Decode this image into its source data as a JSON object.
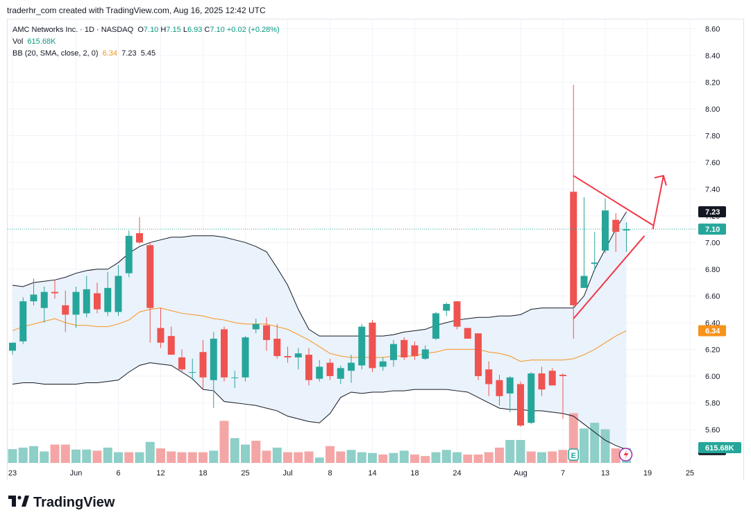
{
  "header": {
    "caption": "traderhr_com created with TradingView.com, Aug 16, 2025 12:42 UTC"
  },
  "legend": {
    "symbol": "AMC Networks Inc. · 1D · NASDAQ",
    "o_label": "O",
    "o_val": "7.10",
    "h_label": "H",
    "h_val": "7.15",
    "l_label": "L",
    "l_val": "6.93",
    "c_label": "C",
    "c_val": "7.10",
    "change": "+0.02 (+0.28%)",
    "vol_label": "Vol",
    "vol_val": "615.68K",
    "bb_label": "BB (20, SMA, close, 2, 0)",
    "bb_basis": "6.34",
    "bb_upper": "7.23",
    "bb_lower": "5.45"
  },
  "footer": {
    "brand": "TradingView"
  },
  "colors": {
    "up": "#26a69a",
    "down": "#ef5350",
    "up_vol": "#8ecfc8",
    "down_vol": "#f4a6a6",
    "basis": "#f7931a",
    "band": "#131722",
    "band_fill": "#eaf2fb",
    "drawing": "#f23645",
    "grid": "#f0f3fa"
  },
  "chart_data": {
    "type": "candlestick",
    "y_axis": {
      "ticks": [
        "8.60",
        "8.40",
        "8.20",
        "8.00",
        "7.80",
        "7.60",
        "7.40",
        "7.20",
        "7.00",
        "6.80",
        "6.60",
        "6.40",
        "6.20",
        "6.00",
        "5.80",
        "5.60"
      ],
      "ylim": [
        5.35,
        8.67
      ]
    },
    "x_axis": {
      "ticks": [
        {
          "label": "23",
          "i": 0
        },
        {
          "label": "Jun",
          "i": 6
        },
        {
          "label": "6",
          "i": 10
        },
        {
          "label": "12",
          "i": 14
        },
        {
          "label": "18",
          "i": 18
        },
        {
          "label": "25",
          "i": 22
        },
        {
          "label": "Jul",
          "i": 26
        },
        {
          "label": "8",
          "i": 30
        },
        {
          "label": "14",
          "i": 34
        },
        {
          "label": "18",
          "i": 38
        },
        {
          "label": "24",
          "i": 42
        },
        {
          "label": "Aug",
          "i": 48
        },
        {
          "label": "7",
          "i": 52
        },
        {
          "label": "13",
          "i": 56
        },
        {
          "label": "19",
          "i": 60
        },
        {
          "label": "25",
          "i": 64
        }
      ]
    },
    "price_labels": [
      {
        "value": 7.23,
        "text": "7.23",
        "bg": "#131722"
      },
      {
        "value": 7.1,
        "text": "7.10",
        "bg": "#26a69a"
      },
      {
        "value": 6.34,
        "text": "6.34",
        "bg": "#f7931a"
      },
      {
        "value": 5.45,
        "text": "5.45",
        "bg": "#131722"
      }
    ],
    "last_close": 7.1,
    "volume_label": "615.68K",
    "candles": [
      {
        "o": 6.19,
        "h": 6.25,
        "l": 6.16,
        "c": 6.25
      },
      {
        "o": 6.26,
        "h": 6.59,
        "l": 6.24,
        "c": 6.56
      },
      {
        "o": 6.56,
        "h": 6.73,
        "l": 6.53,
        "c": 6.61
      },
      {
        "o": 6.51,
        "h": 6.67,
        "l": 6.4,
        "c": 6.63
      },
      {
        "o": 6.63,
        "h": 6.72,
        "l": 6.58,
        "c": 6.62
      },
      {
        "o": 6.53,
        "h": 6.64,
        "l": 6.33,
        "c": 6.46
      },
      {
        "o": 6.46,
        "h": 6.67,
        "l": 6.36,
        "c": 6.63
      },
      {
        "o": 6.47,
        "h": 6.75,
        "l": 6.44,
        "c": 6.65
      },
      {
        "o": 6.62,
        "h": 6.7,
        "l": 6.47,
        "c": 6.5
      },
      {
        "o": 6.48,
        "h": 6.78,
        "l": 6.45,
        "c": 6.66
      },
      {
        "o": 6.48,
        "h": 6.83,
        "l": 6.45,
        "c": 6.75
      },
      {
        "o": 6.77,
        "h": 7.09,
        "l": 6.74,
        "c": 7.05
      },
      {
        "o": 7.07,
        "h": 7.19,
        "l": 6.99,
        "c": 7.0
      },
      {
        "o": 6.98,
        "h": 7.0,
        "l": 6.25,
        "c": 6.51
      },
      {
        "o": 6.36,
        "h": 6.51,
        "l": 6.21,
        "c": 6.25
      },
      {
        "o": 6.3,
        "h": 6.37,
        "l": 6.16,
        "c": 6.16
      },
      {
        "o": 6.14,
        "h": 6.2,
        "l": 6.03,
        "c": 6.05
      },
      {
        "o": 6.03,
        "h": 6.13,
        "l": 5.97,
        "c": 6.03
      },
      {
        "o": 6.18,
        "h": 6.27,
        "l": 5.9,
        "c": 5.99
      },
      {
        "o": 5.97,
        "h": 6.33,
        "l": 5.76,
        "c": 6.28
      },
      {
        "o": 6.35,
        "h": 6.37,
        "l": 5.96,
        "c": 5.99
      },
      {
        "o": 5.99,
        "h": 6.04,
        "l": 5.91,
        "c": 5.99
      },
      {
        "o": 5.99,
        "h": 6.3,
        "l": 5.96,
        "c": 6.29
      },
      {
        "o": 6.35,
        "h": 6.43,
        "l": 6.32,
        "c": 6.39
      },
      {
        "o": 6.38,
        "h": 6.44,
        "l": 6.19,
        "c": 6.27
      },
      {
        "o": 6.28,
        "h": 6.39,
        "l": 6.13,
        "c": 6.15
      },
      {
        "o": 6.15,
        "h": 6.22,
        "l": 6.1,
        "c": 6.14
      },
      {
        "o": 6.14,
        "h": 6.21,
        "l": 6.05,
        "c": 6.17
      },
      {
        "o": 6.16,
        "h": 6.21,
        "l": 5.93,
        "c": 5.97
      },
      {
        "o": 5.98,
        "h": 6.12,
        "l": 5.96,
        "c": 6.07
      },
      {
        "o": 6.1,
        "h": 6.13,
        "l": 5.97,
        "c": 6.0
      },
      {
        "o": 5.98,
        "h": 6.08,
        "l": 5.94,
        "c": 6.06
      },
      {
        "o": 6.04,
        "h": 6.16,
        "l": 5.95,
        "c": 6.1
      },
      {
        "o": 6.08,
        "h": 6.39,
        "l": 6.05,
        "c": 6.37
      },
      {
        "o": 6.4,
        "h": 6.42,
        "l": 6.03,
        "c": 6.06
      },
      {
        "o": 6.07,
        "h": 6.14,
        "l": 6.04,
        "c": 6.11
      },
      {
        "o": 6.12,
        "h": 6.27,
        "l": 6.07,
        "c": 6.24
      },
      {
        "o": 6.27,
        "h": 6.29,
        "l": 6.12,
        "c": 6.14
      },
      {
        "o": 6.23,
        "h": 6.26,
        "l": 6.12,
        "c": 6.15
      },
      {
        "o": 6.13,
        "h": 6.23,
        "l": 6.12,
        "c": 6.2
      },
      {
        "o": 6.28,
        "h": 6.48,
        "l": 6.27,
        "c": 6.47
      },
      {
        "o": 6.49,
        "h": 6.55,
        "l": 6.45,
        "c": 6.54
      },
      {
        "o": 6.56,
        "h": 6.56,
        "l": 6.35,
        "c": 6.37
      },
      {
        "o": 6.36,
        "h": 6.36,
        "l": 6.28,
        "c": 6.28
      },
      {
        "o": 6.32,
        "h": 6.32,
        "l": 5.97,
        "c": 6.0
      },
      {
        "o": 6.05,
        "h": 6.11,
        "l": 5.85,
        "c": 5.94
      },
      {
        "o": 5.97,
        "h": 6.01,
        "l": 5.78,
        "c": 5.85
      },
      {
        "o": 5.87,
        "h": 6.0,
        "l": 5.73,
        "c": 5.99
      },
      {
        "o": 5.94,
        "h": 5.96,
        "l": 5.62,
        "c": 5.63
      },
      {
        "o": 5.65,
        "h": 6.03,
        "l": 5.64,
        "c": 6.02
      },
      {
        "o": 6.02,
        "h": 6.07,
        "l": 5.85,
        "c": 5.9
      },
      {
        "o": 6.04,
        "h": 6.06,
        "l": 5.95,
        "c": 5.93
      },
      {
        "o": 6.01,
        "h": 6.02,
        "l": 5.68,
        "c": 6.0
      },
      {
        "o": 7.38,
        "h": 8.18,
        "l": 6.28,
        "c": 6.53
      },
      {
        "o": 6.66,
        "h": 7.34,
        "l": 6.66,
        "c": 6.75
      },
      {
        "o": 6.84,
        "h": 7.08,
        "l": 6.79,
        "c": 6.85
      },
      {
        "o": 6.94,
        "h": 7.33,
        "l": 6.92,
        "c": 7.24
      },
      {
        "o": 7.17,
        "h": 7.22,
        "l": 6.93,
        "c": 7.08
      },
      {
        "o": 7.09,
        "h": 7.15,
        "l": 6.93,
        "c": 7.1
      }
    ],
    "volume": [
      {
        "v": 0.36,
        "up": true
      },
      {
        "v": 0.4,
        "up": true
      },
      {
        "v": 0.44,
        "up": true
      },
      {
        "v": 0.3,
        "up": true
      },
      {
        "v": 0.48,
        "up": false
      },
      {
        "v": 0.48,
        "up": false
      },
      {
        "v": 0.35,
        "up": true
      },
      {
        "v": 0.35,
        "up": true
      },
      {
        "v": 0.32,
        "up": false
      },
      {
        "v": 0.4,
        "up": true
      },
      {
        "v": 0.28,
        "up": true
      },
      {
        "v": 0.28,
        "up": false
      },
      {
        "v": 0.28,
        "up": true
      },
      {
        "v": 0.55,
        "up": true
      },
      {
        "v": 0.38,
        "up": false
      },
      {
        "v": 0.3,
        "up": false
      },
      {
        "v": 0.28,
        "up": false
      },
      {
        "v": 0.28,
        "up": false
      },
      {
        "v": 0.28,
        "up": false
      },
      {
        "v": 0.32,
        "up": true
      },
      {
        "v": 1.1,
        "up": false
      },
      {
        "v": 0.65,
        "up": true
      },
      {
        "v": 0.48,
        "up": true
      },
      {
        "v": 0.58,
        "up": false
      },
      {
        "v": 0.32,
        "up": false
      },
      {
        "v": 0.4,
        "up": true
      },
      {
        "v": 0.28,
        "up": false
      },
      {
        "v": 0.28,
        "up": false
      },
      {
        "v": 0.3,
        "up": false
      },
      {
        "v": 0.14,
        "up": true
      },
      {
        "v": 0.44,
        "up": false
      },
      {
        "v": 0.3,
        "up": false
      },
      {
        "v": 0.34,
        "up": true
      },
      {
        "v": 0.28,
        "up": true
      },
      {
        "v": 0.26,
        "up": true
      },
      {
        "v": 0.22,
        "up": false
      },
      {
        "v": 0.26,
        "up": true
      },
      {
        "v": 0.32,
        "up": true
      },
      {
        "v": 0.22,
        "up": false
      },
      {
        "v": 0.18,
        "up": false
      },
      {
        "v": 0.28,
        "up": true
      },
      {
        "v": 0.34,
        "up": true
      },
      {
        "v": 0.28,
        "up": true
      },
      {
        "v": 0.22,
        "up": false
      },
      {
        "v": 0.22,
        "up": false
      },
      {
        "v": 0.28,
        "up": false
      },
      {
        "v": 0.4,
        "up": false
      },
      {
        "v": 0.6,
        "up": true
      },
      {
        "v": 0.6,
        "up": true
      },
      {
        "v": 0.3,
        "up": false
      },
      {
        "v": 0.28,
        "up": true
      },
      {
        "v": 0.3,
        "up": false
      },
      {
        "v": 0.34,
        "up": false
      },
      {
        "v": 1.3,
        "up": false
      },
      {
        "v": 0.9,
        "up": true
      },
      {
        "v": 1.05,
        "up": true
      },
      {
        "v": 0.88,
        "up": true
      },
      {
        "v": 0.38,
        "up": false
      },
      {
        "v": 0.39,
        "up": true
      }
    ],
    "bb_upper": [
      6.68,
      6.67,
      6.7,
      6.71,
      6.72,
      6.74,
      6.77,
      6.79,
      6.8,
      6.8,
      6.85,
      6.92,
      6.97,
      7.0,
      7.02,
      7.04,
      7.04,
      7.05,
      7.05,
      7.05,
      7.04,
      7.02,
      7.0,
      6.97,
      6.93,
      6.81,
      6.68,
      6.5,
      6.35,
      6.3,
      6.3,
      6.3,
      6.3,
      6.3,
      6.3,
      6.3,
      6.31,
      6.33,
      6.34,
      6.35,
      6.38,
      6.4,
      6.42,
      6.43,
      6.44,
      6.44,
      6.45,
      6.45,
      6.46,
      6.5,
      6.51,
      6.51,
      6.51,
      6.51,
      6.6,
      6.8,
      6.95,
      7.1,
      7.23
    ],
    "bb_basis": [
      6.34,
      6.37,
      6.39,
      6.41,
      6.43,
      6.4,
      6.38,
      6.38,
      6.37,
      6.37,
      6.39,
      6.42,
      6.48,
      6.5,
      6.51,
      6.49,
      6.47,
      6.46,
      6.45,
      6.43,
      6.42,
      6.4,
      6.39,
      6.39,
      6.39,
      6.37,
      6.35,
      6.31,
      6.27,
      6.22,
      6.17,
      6.15,
      6.14,
      6.14,
      6.14,
      6.14,
      6.15,
      6.15,
      6.15,
      6.17,
      6.18,
      6.2,
      6.2,
      6.2,
      6.2,
      6.18,
      6.17,
      6.15,
      6.11,
      6.12,
      6.12,
      6.12,
      6.12,
      6.13,
      6.16,
      6.2,
      6.25,
      6.3,
      6.34
    ],
    "bb_lower": [
      5.94,
      5.95,
      5.95,
      5.94,
      5.94,
      5.94,
      5.94,
      5.95,
      5.95,
      5.96,
      5.97,
      6.03,
      6.08,
      6.1,
      6.09,
      6.08,
      6.03,
      5.98,
      5.9,
      5.89,
      5.81,
      5.8,
      5.79,
      5.78,
      5.76,
      5.74,
      5.7,
      5.68,
      5.66,
      5.65,
      5.72,
      5.84,
      5.88,
      5.87,
      5.88,
      5.88,
      5.89,
      5.89,
      5.9,
      5.9,
      5.9,
      5.9,
      5.89,
      5.88,
      5.84,
      5.8,
      5.76,
      5.75,
      5.75,
      5.74,
      5.74,
      5.73,
      5.72,
      5.7,
      5.64,
      5.58,
      5.52,
      5.48,
      5.45
    ],
    "drawings": [
      {
        "kind": "line",
        "from": [
          53,
          7.5
        ],
        "to": [
          60.5,
          7.13
        ]
      },
      {
        "kind": "line",
        "from": [
          53,
          6.43
        ],
        "to": [
          59.7,
          7.05
        ]
      },
      {
        "kind": "arrow",
        "from": [
          60.5,
          7.1
        ],
        "to": [
          61.5,
          7.5
        ]
      }
    ]
  }
}
